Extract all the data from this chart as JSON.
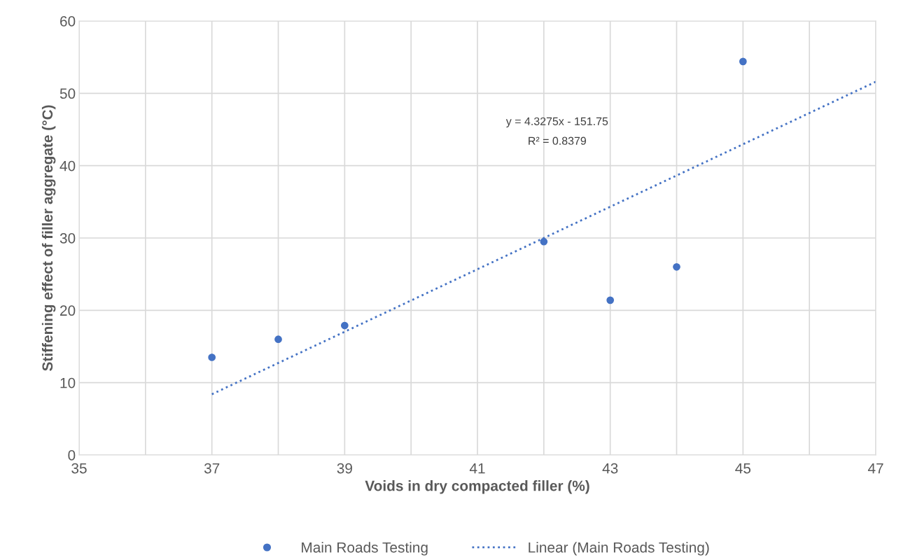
{
  "chart_data": {
    "type": "scatter",
    "xlabel": "Voids in dry compacted filler (%)",
    "ylabel": "Stiffening effect of filler aggregate (°C)",
    "series": [
      {
        "name": "Main Roads Testing",
        "color": "#4472c4",
        "marker": "circle",
        "x": [
          37,
          38,
          39,
          42,
          43,
          44,
          45
        ],
        "values": [
          13.5,
          16.0,
          17.9,
          29.5,
          21.4,
          26.0,
          54.4
        ]
      },
      {
        "name": "Linear (Main Roads Testing)",
        "type": "line",
        "color": "#4472c4",
        "marker": "none",
        "line_style": "dotted",
        "x": [
          37,
          47
        ],
        "values": [
          8.4,
          51.6
        ]
      }
    ],
    "annotations": [
      "y = 4.3275x - 151.75",
      "R² = 0.8379"
    ],
    "xlim": [
      35,
      47
    ],
    "xticks": [
      35,
      {
        "value": 36,
        "label": null
      },
      37,
      {
        "value": 38,
        "label": null
      },
      39,
      {
        "value": 40,
        "label": null
      },
      41,
      {
        "value": 42,
        "label": null
      },
      43,
      {
        "value": 44,
        "label": null
      },
      45,
      {
        "value": 46,
        "label": null
      },
      47
    ],
    "ylim": [
      0,
      60
    ],
    "yticks": [
      0,
      10,
      20,
      30,
      40,
      50,
      60
    ],
    "grid": true,
    "legend": "bottom"
  }
}
